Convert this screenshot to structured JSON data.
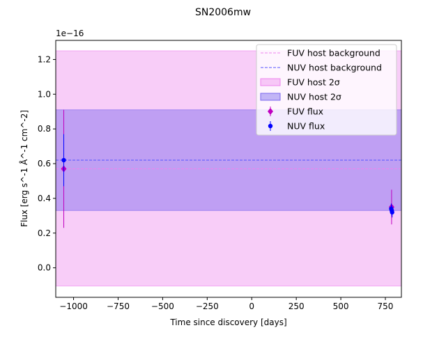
{
  "chart_data": {
    "type": "scatter",
    "title": "SN2006mw",
    "xlabel": "Time since discovery [days]",
    "ylabel": "Flux [erg s^-1 Å^-1 cm^-2]",
    "y_offset_label": "1e−16",
    "y_scale": 1e-16,
    "xlim": [
      -1100,
      840
    ],
    "ylim": [
      -0.17,
      1.31
    ],
    "x_ticks": [
      -1000,
      -750,
      -500,
      -250,
      0,
      250,
      500,
      750
    ],
    "x_tick_labels": [
      "−1000",
      "−750",
      "−500",
      "−250",
      "0",
      "250",
      "500",
      "750"
    ],
    "y_ticks": [
      0.0,
      0.2,
      0.4,
      0.6,
      0.8,
      1.0,
      1.2
    ],
    "y_tick_labels": [
      "0.0",
      "0.2",
      "0.4",
      "0.6",
      "0.8",
      "1.0",
      "1.2"
    ],
    "grid": false,
    "legend_position": "top-right",
    "bands": [
      {
        "name": "FUV host 2σ",
        "lower": -0.105,
        "upper": 1.25,
        "color": "#ee82ee",
        "opacity": 0.4
      },
      {
        "name": "NUV host 2σ",
        "lower": 0.33,
        "upper": 0.91,
        "color": "#7b68ee",
        "opacity": 0.45
      }
    ],
    "background_lines": [
      {
        "name": "FUV host background",
        "value": 0.57,
        "color": "#ee82ee"
      },
      {
        "name": "NUV host background",
        "value": 0.62,
        "color": "#5555ff"
      }
    ],
    "series": [
      {
        "name": "FUV flux",
        "color": "#bf00bf",
        "marker": "diamond",
        "points": [
          {
            "x": -1055,
            "y": 0.57,
            "err": 0.34
          },
          {
            "x": 785,
            "y": 0.35,
            "err": 0.1
          }
        ]
      },
      {
        "name": "NUV flux",
        "color": "#0000ff",
        "marker": "circle",
        "points": [
          {
            "x": -1055,
            "y": 0.62,
            "err": 0.15
          },
          {
            "x": 783,
            "y": 0.34,
            "err": 0.03
          },
          {
            "x": 786,
            "y": 0.33,
            "err": 0.03
          },
          {
            "x": 788,
            "y": 0.32,
            "err": 0.03
          }
        ]
      }
    ],
    "legend": [
      {
        "label": "FUV host background",
        "kind": "dash",
        "color": "#ee82ee"
      },
      {
        "label": "NUV host background",
        "kind": "dash",
        "color": "#5555ff"
      },
      {
        "label": "FUV host 2σ",
        "kind": "patch",
        "color": "#ee82ee",
        "opacity": 0.4
      },
      {
        "label": "NUV host 2σ",
        "kind": "patch",
        "color": "#7b68ee",
        "opacity": 0.45
      },
      {
        "label": "FUV flux",
        "kind": "marker",
        "marker": "diamond",
        "color": "#bf00bf"
      },
      {
        "label": "NUV flux",
        "kind": "marker",
        "marker": "circle",
        "color": "#0000ff"
      }
    ]
  }
}
